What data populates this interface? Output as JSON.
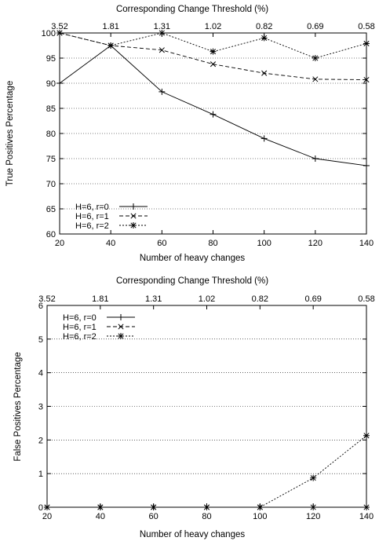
{
  "chart_data": [
    {
      "type": "line",
      "xlabel": "Number of heavy changes",
      "ylabel": "True Positives Percentage",
      "x2label": "Corresponding Change Threshold (%)",
      "x": [
        20,
        40,
        60,
        80,
        100,
        120,
        140
      ],
      "x2_ticks": [
        "3.52",
        "1.81",
        "1.31",
        "1.02",
        "0.82",
        "0.69",
        "0.58"
      ],
      "xlim": [
        20,
        140
      ],
      "ylim": [
        60,
        100
      ],
      "yticks": [
        60,
        65,
        70,
        75,
        80,
        85,
        90,
        95,
        100
      ],
      "grid": "horizontal dotted",
      "legend": "bottom-left",
      "series": [
        {
          "name": "H=6, r=0",
          "marker": "plus",
          "dash": "solid",
          "values": [
            90,
            97.5,
            88.3,
            83.8,
            79,
            75,
            73.6
          ]
        },
        {
          "name": "H=6, r=1",
          "marker": "cross",
          "dash": "dashed",
          "values": [
            100,
            97.5,
            96.6,
            93.8,
            92,
            90.8,
            90.7
          ]
        },
        {
          "name": "H=6, r=2",
          "marker": "star",
          "dash": "dotted",
          "values": [
            100,
            97.5,
            100,
            96.3,
            99,
            95,
            97.9
          ]
        }
      ]
    },
    {
      "type": "line",
      "xlabel": "Number of heavy changes",
      "ylabel": "False Positives Percentage",
      "x2label": "Corresponding Change Threshold (%)",
      "x": [
        20,
        40,
        60,
        80,
        100,
        120,
        140
      ],
      "x2_ticks": [
        "3.52",
        "1.81",
        "1.31",
        "1.02",
        "0.82",
        "0.69",
        "0.58"
      ],
      "xlim": [
        20,
        140
      ],
      "ylim": [
        0,
        6
      ],
      "yticks": [
        0,
        1,
        2,
        3,
        4,
        5,
        6
      ],
      "grid": "horizontal dotted",
      "legend": "top-left",
      "series": [
        {
          "name": "H=6, r=0",
          "marker": "plus",
          "dash": "solid",
          "values": [
            0,
            0,
            0,
            0,
            0,
            0,
            0
          ]
        },
        {
          "name": "H=6, r=1",
          "marker": "cross",
          "dash": "dashed",
          "values": [
            0,
            0,
            0,
            0,
            0,
            0,
            0
          ]
        },
        {
          "name": "H=6, r=2",
          "marker": "star",
          "dash": "dotted",
          "values": [
            0,
            0,
            0,
            0,
            0,
            0.87,
            2.13
          ]
        }
      ]
    }
  ]
}
